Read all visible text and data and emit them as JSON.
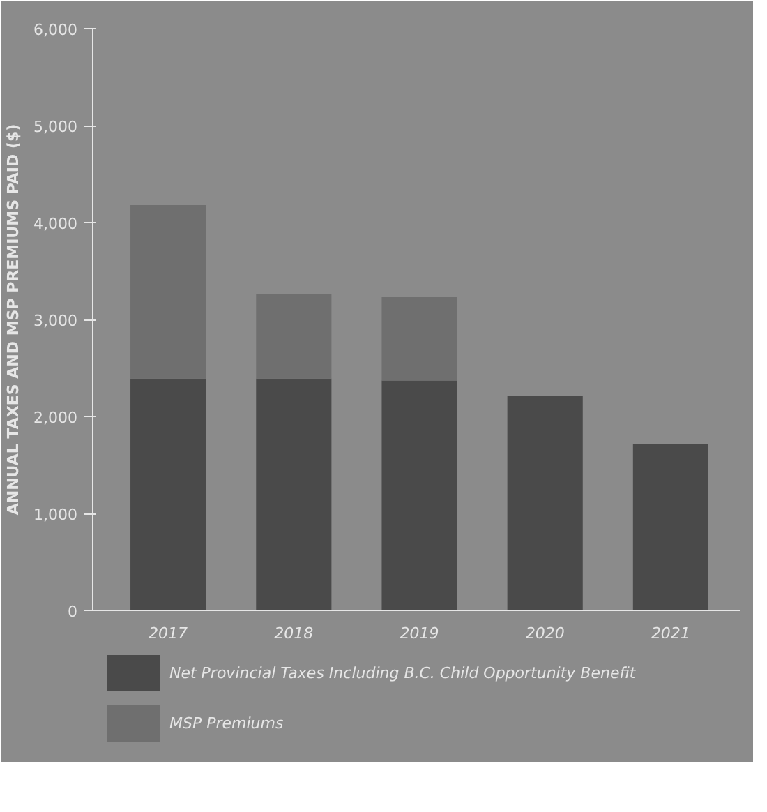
{
  "chart_data": {
    "type": "bar",
    "stacked": true,
    "ylabel": "ANNUAL TAXES AND MSP PREMIUMS PAID ($)",
    "categories": [
      "2017",
      "2018",
      "2019",
      "2020",
      "2021"
    ],
    "series": [
      {
        "name": "Net Provincial Taxes Including B.C. Child Opportunity Benefit",
        "color": "#4a4a4a",
        "values": [
          2390,
          2390,
          2370,
          2210,
          1720
        ]
      },
      {
        "name": "MSP Premiums",
        "color": "#6f6f6f",
        "values": [
          1790,
          870,
          860,
          null,
          null
        ]
      }
    ],
    "ylim": [
      0,
      6000
    ],
    "yticks": [
      {
        "value": 0,
        "label": "0"
      },
      {
        "value": 1000,
        "label": "1,000"
      },
      {
        "value": 2000,
        "label": "2,000"
      },
      {
        "value": 3000,
        "label": "3,000"
      },
      {
        "value": 4000,
        "label": "4,000"
      },
      {
        "value": 5000,
        "label": "5,000"
      },
      {
        "value": 6000,
        "label": "6,000"
      }
    ],
    "grid": false,
    "legend": "bottom"
  }
}
